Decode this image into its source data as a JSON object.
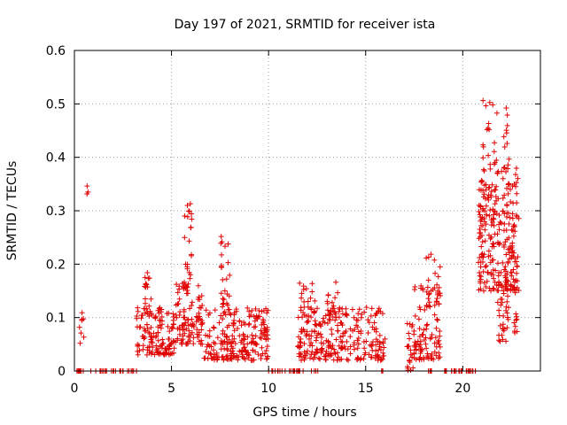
{
  "chart_data": {
    "type": "scatter",
    "title": "Day 197 of 2021, SRMTID for receiver ista",
    "xlabel": "GPS time / hours",
    "ylabel": "SRMTID / TECUs",
    "xlim": [
      0,
      24
    ],
    "ylim": [
      0,
      0.6
    ],
    "x_ticks": [
      0,
      5,
      10,
      15,
      20
    ],
    "y_ticks": [
      0,
      0.1,
      0.2,
      0.3,
      0.4,
      0.5,
      0.6
    ],
    "x_tick_labels": [
      "0",
      "5",
      "10",
      "15",
      "20"
    ],
    "y_tick_labels": [
      "0",
      "0.1",
      "0.2",
      "0.3",
      "0.4",
      "0.5",
      "0.6"
    ],
    "grid": true,
    "marker": "+",
    "marker_color": "#e00000",
    "series": [
      {
        "name": "ista",
        "clusters": [
          {
            "x_range": [
              0.1,
              0.5
            ],
            "y_min": 0.0,
            "y_max": 0.0,
            "count": 12
          },
          {
            "x_range": [
              0.2,
              0.5
            ],
            "y_min": 0.05,
            "y_max": 0.11,
            "count": 8
          },
          {
            "x_range": [
              0.6,
              0.7
            ],
            "y_min": 0.33,
            "y_max": 0.35,
            "count": 3
          },
          {
            "x_range": [
              0.8,
              3.2
            ],
            "y_min": 0.0,
            "y_max": 0.0,
            "count": 30
          },
          {
            "x_range": [
              3.2,
              5.2
            ],
            "y_min": 0.03,
            "y_max": 0.12,
            "count": 130
          },
          {
            "x_range": [
              3.6,
              4.0
            ],
            "y_min": 0.1,
            "y_max": 0.19,
            "count": 18
          },
          {
            "x_range": [
              5.2,
              6.6
            ],
            "y_min": 0.05,
            "y_max": 0.17,
            "count": 100
          },
          {
            "x_range": [
              5.6,
              6.1
            ],
            "y_min": 0.15,
            "y_max": 0.32,
            "count": 28
          },
          {
            "x_range": [
              6.6,
              10.0
            ],
            "y_min": 0.02,
            "y_max": 0.12,
            "count": 220
          },
          {
            "x_range": [
              7.5,
              8.0
            ],
            "y_min": 0.12,
            "y_max": 0.26,
            "count": 24
          },
          {
            "x_range": [
              10.0,
              11.8
            ],
            "y_min": 0.0,
            "y_max": 0.0,
            "count": 22
          },
          {
            "x_range": [
              11.5,
              16.0
            ],
            "y_min": 0.02,
            "y_max": 0.12,
            "count": 260
          },
          {
            "x_range": [
              11.6,
              12.4
            ],
            "y_min": 0.1,
            "y_max": 0.17,
            "count": 20
          },
          {
            "x_range": [
              13.0,
              13.6
            ],
            "y_min": 0.1,
            "y_max": 0.17,
            "count": 18
          },
          {
            "x_range": [
              12.2,
              12.6
            ],
            "y_min": 0.0,
            "y_max": 0.0,
            "count": 4
          },
          {
            "x_range": [
              15.8,
              16.0
            ],
            "y_min": 0.0,
            "y_max": 0.0,
            "count": 3
          },
          {
            "x_range": [
              17.1,
              17.5
            ],
            "y_min": 0.0,
            "y_max": 0.09,
            "count": 24
          },
          {
            "x_range": [
              17.5,
              18.9
            ],
            "y_min": 0.02,
            "y_max": 0.16,
            "count": 90
          },
          {
            "x_range": [
              18.1,
              18.9
            ],
            "y_min": 0.12,
            "y_max": 0.23,
            "count": 22
          },
          {
            "x_range": [
              18.2,
              18.5
            ],
            "y_min": 0.0,
            "y_max": 0.0,
            "count": 4
          },
          {
            "x_range": [
              19.0,
              20.8
            ],
            "y_min": 0.0,
            "y_max": 0.0,
            "count": 34
          },
          {
            "x_range": [
              20.8,
              22.9
            ],
            "y_min": 0.15,
            "y_max": 0.38,
            "count": 240
          },
          {
            "x_range": [
              20.9,
              21.8
            ],
            "y_min": 0.3,
            "y_max": 0.51,
            "count": 40
          },
          {
            "x_range": [
              21.8,
              22.8
            ],
            "y_min": 0.05,
            "y_max": 0.2,
            "count": 50
          },
          {
            "x_range": [
              22.1,
              22.4
            ],
            "y_min": 0.38,
            "y_max": 0.5,
            "count": 12
          }
        ]
      }
    ]
  }
}
